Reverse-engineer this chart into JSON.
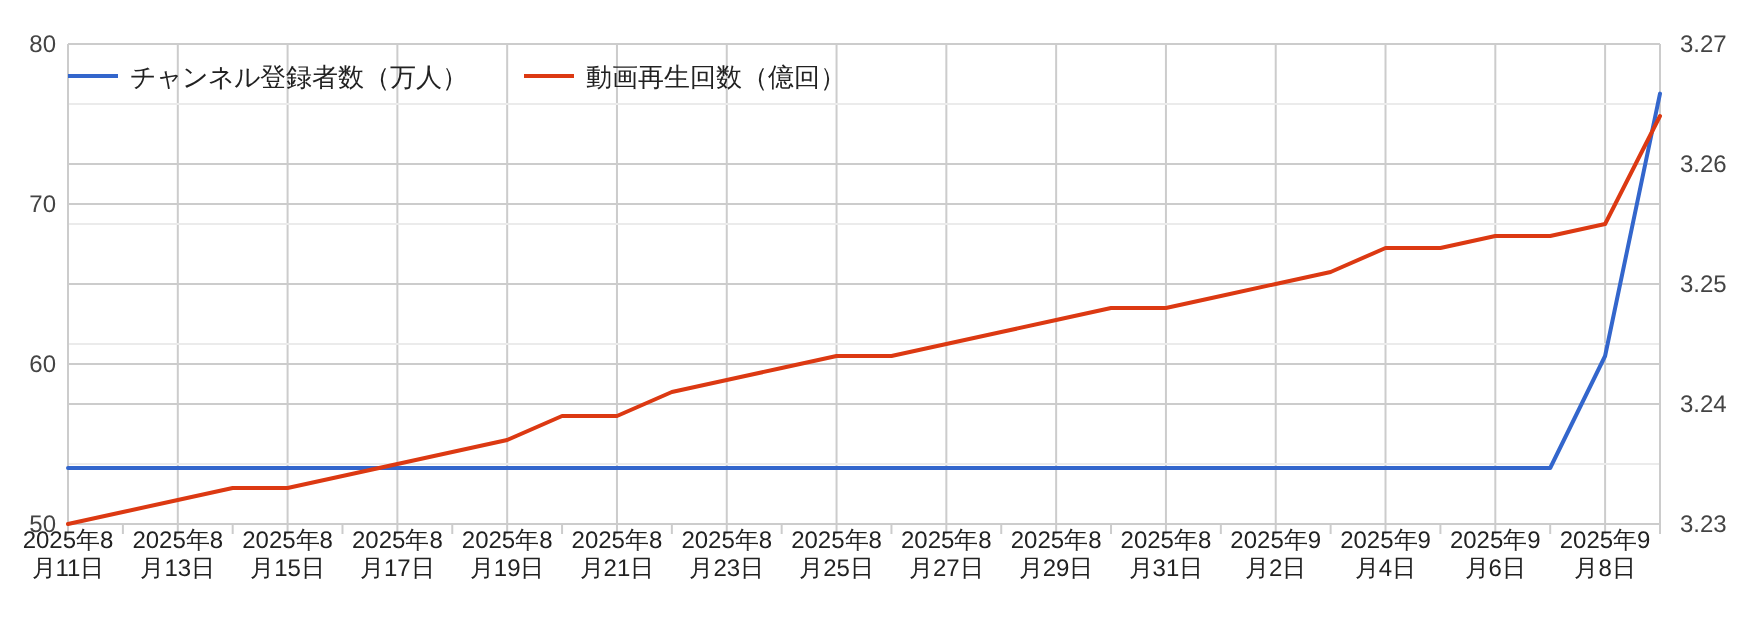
{
  "chart_data": {
    "type": "line",
    "x": [
      "2025-08-11",
      "2025-08-12",
      "2025-08-13",
      "2025-08-14",
      "2025-08-15",
      "2025-08-16",
      "2025-08-17",
      "2025-08-18",
      "2025-08-19",
      "2025-08-20",
      "2025-08-21",
      "2025-08-22",
      "2025-08-23",
      "2025-08-24",
      "2025-08-25",
      "2025-08-26",
      "2025-08-27",
      "2025-08-28",
      "2025-08-29",
      "2025-08-30",
      "2025-08-31",
      "2025-09-01",
      "2025-09-02",
      "2025-09-03",
      "2025-09-04",
      "2025-09-05",
      "2025-09-06",
      "2025-09-07",
      "2025-09-08",
      "2025-09-09"
    ],
    "series": [
      {
        "name": "チャンネル登録者数（万人）",
        "color": "#3366cc",
        "values": [
          53.5,
          53.5,
          53.5,
          53.5,
          53.5,
          53.5,
          53.5,
          53.5,
          53.5,
          53.5,
          53.5,
          53.5,
          53.5,
          53.5,
          53.5,
          53.5,
          53.5,
          53.5,
          53.5,
          53.5,
          53.5,
          53.5,
          53.5,
          53.5,
          53.5,
          53.5,
          53.5,
          53.5,
          60.5,
          76.9
        ]
      },
      {
        "name": "動画再生回数（億回）",
        "color": "#dc3912",
        "axis": "y2",
        "values": [
          3.23,
          3.231,
          3.232,
          3.233,
          3.233,
          3.234,
          3.235,
          3.236,
          3.237,
          3.239,
          3.239,
          3.241,
          3.242,
          3.243,
          3.244,
          3.244,
          3.245,
          3.246,
          3.247,
          3.248,
          3.248,
          3.249,
          3.25,
          3.251,
          3.253,
          3.253,
          3.254,
          3.254,
          3.255,
          3.264
        ]
      }
    ],
    "xlim": [
      "2025-08-11",
      "2025-09-09"
    ],
    "xticks": [
      {
        "value": "2025-08-11",
        "label": "2025年8月11日"
      },
      {
        "value": "2025-08-13",
        "label": "2025年8月13日"
      },
      {
        "value": "2025-08-15",
        "label": "2025年8月15日"
      },
      {
        "value": "2025-08-17",
        "label": "2025年8月17日"
      },
      {
        "value": "2025-08-19",
        "label": "2025年8月19日"
      },
      {
        "value": "2025-08-21",
        "label": "2025年8月21日"
      },
      {
        "value": "2025-08-23",
        "label": "2025年8月23日"
      },
      {
        "value": "2025-08-25",
        "label": "2025年8月25日"
      },
      {
        "value": "2025-08-27",
        "label": "2025年8月27日"
      },
      {
        "value": "2025-08-29",
        "label": "2025年8月29日"
      },
      {
        "value": "2025-08-31",
        "label": "2025年8月31日"
      },
      {
        "value": "2025-09-02",
        "label": "2025年9月2日"
      },
      {
        "value": "2025-09-04",
        "label": "2025年9月4日"
      },
      {
        "value": "2025-09-06",
        "label": "2025年9月6日"
      },
      {
        "value": "2025-09-08",
        "label": "2025年9月8日"
      }
    ],
    "ylim": [
      50,
      80
    ],
    "yticks": [
      50,
      60,
      70,
      80
    ],
    "y2lim": [
      3.23,
      3.27
    ],
    "y2ticks": [
      3.23,
      3.24,
      3.25,
      3.26,
      3.27
    ],
    "grid": true,
    "legend": "top left",
    "line_style": "solid",
    "marker": "none"
  }
}
